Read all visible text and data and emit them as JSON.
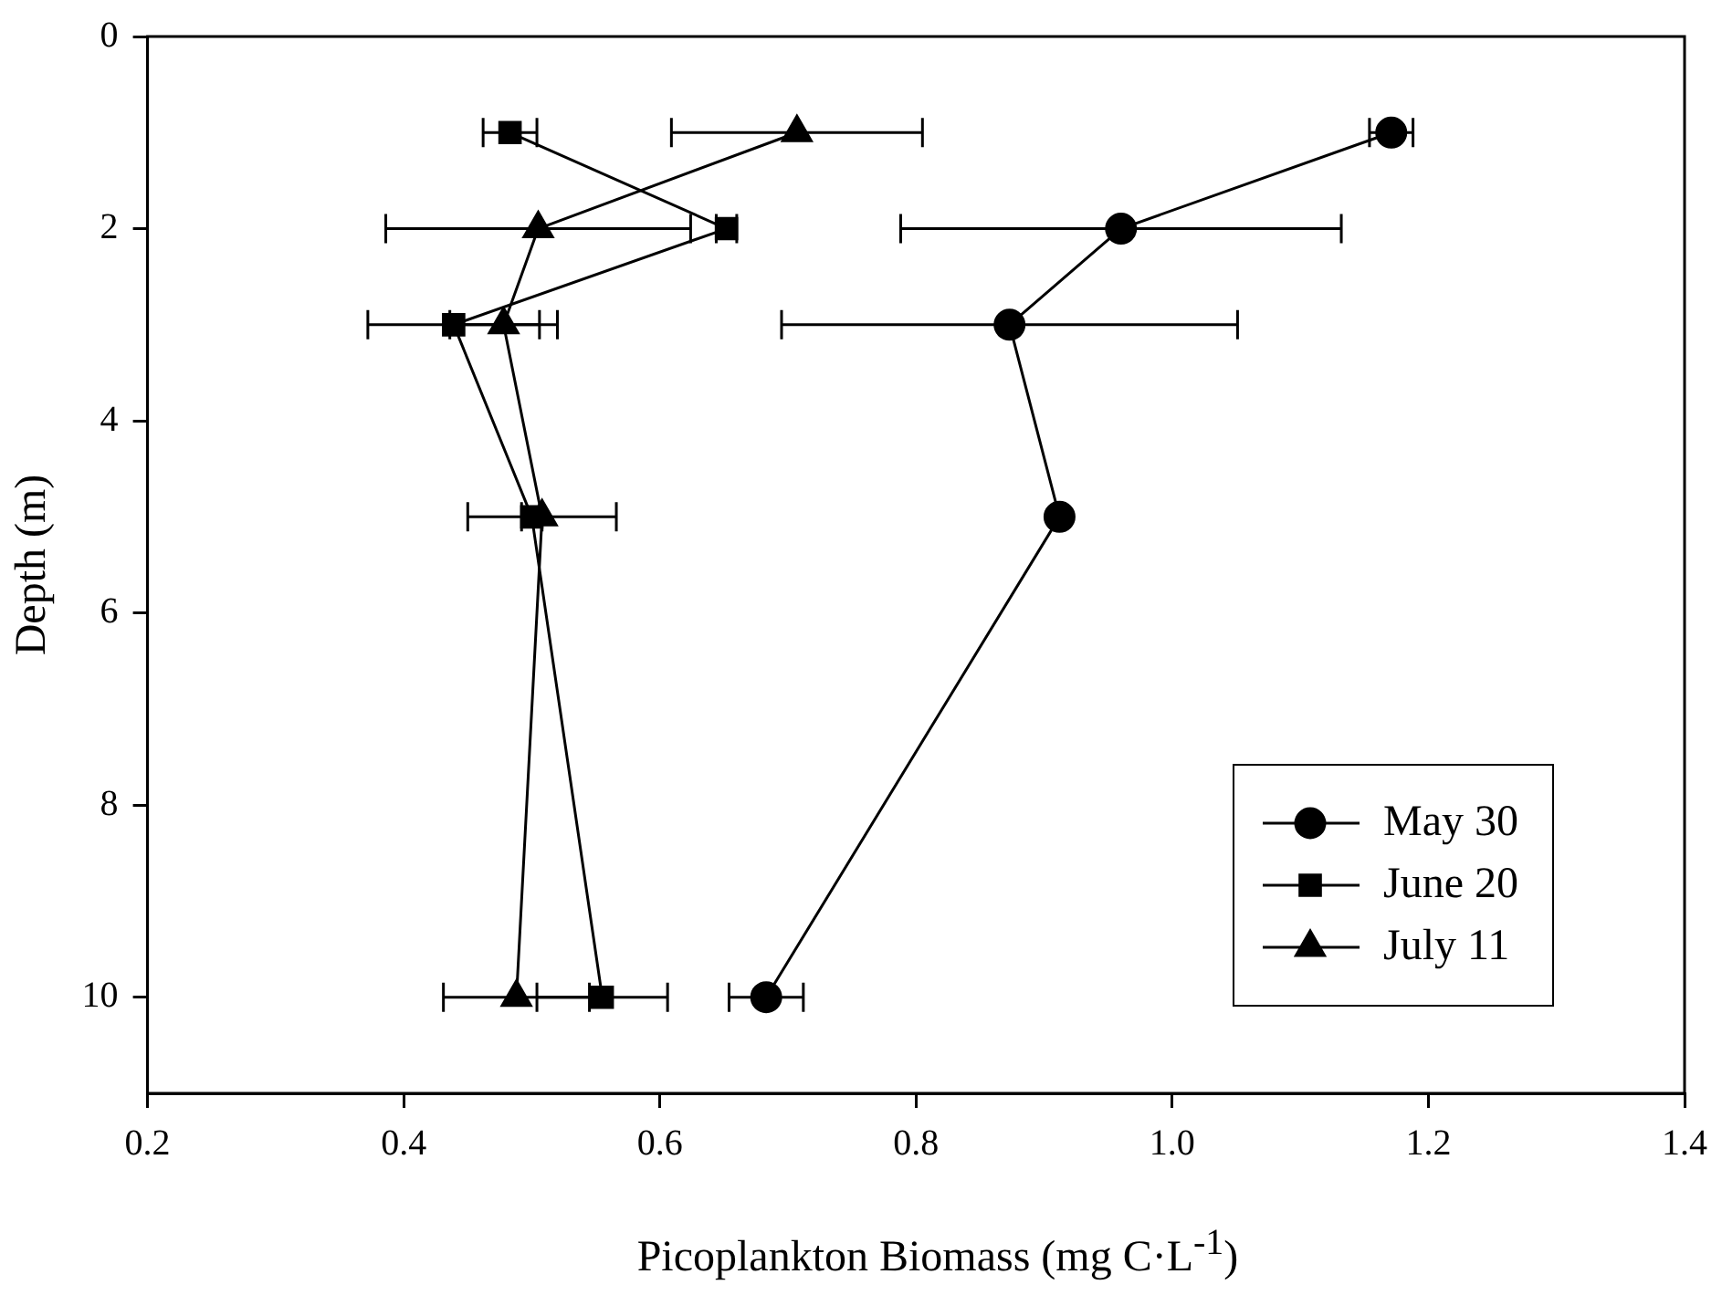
{
  "chart_data": {
    "type": "line",
    "xlabel": "Picoplankton Biomass (mg C·L$^{-1}$)",
    "ylabel": "Depth (m)",
    "xlim": [
      0.2,
      1.4
    ],
    "xticks": [
      {
        "value": 0.2,
        "label": "0.2"
      },
      {
        "value": 0.4,
        "label": "0.4"
      },
      {
        "value": 0.6,
        "label": "0.6"
      },
      {
        "value": 0.8,
        "label": "0.8"
      },
      {
        "value": 1.0,
        "label": "1.0"
      },
      {
        "value": 1.2,
        "label": "1.2"
      },
      {
        "value": 1.4,
        "label": "1.4"
      }
    ],
    "ylim": [
      11,
      0
    ],
    "yticks": [
      0,
      2,
      4,
      6,
      8,
      10
    ],
    "grid": false,
    "legend": "bottom right",
    "line_style": "solid",
    "series": [
      {
        "name": "May 30",
        "color": "#000000",
        "marker": "circle",
        "x": [
          1.171,
          0.96,
          0.873,
          0.912,
          0.683
        ],
        "values": [
          1,
          2,
          3,
          5,
          10
        ],
        "xerrors": [
          0.017,
          0.172,
          0.178,
          0.004,
          0.029
        ]
      },
      {
        "name": "June 20",
        "color": "#000000",
        "marker": "square",
        "x": [
          0.483,
          0.652,
          0.439,
          0.5,
          0.555
        ],
        "values": [
          1,
          2,
          3,
          5,
          10
        ],
        "xerrors": [
          0.021,
          0.008,
          0.067,
          0.008,
          0.051
        ]
      },
      {
        "name": "July 11",
        "color": "#000000",
        "marker": "triangle",
        "x": [
          0.707,
          0.505,
          0.478,
          0.508,
          0.488
        ],
        "values": [
          1,
          2,
          3,
          5,
          10
        ],
        "xerrors": [
          0.098,
          0.119,
          0.042,
          0.058,
          0.057
        ]
      }
    ]
  }
}
